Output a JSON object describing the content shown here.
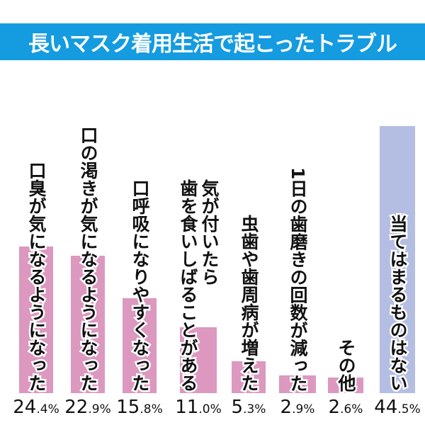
{
  "chart_data": {
    "type": "bar",
    "title": "長いマスク着用生活で起こったトラブル",
    "categories": [
      [
        "口臭が気になるようになった"
      ],
      [
        "口の渇きが気になるようになった"
      ],
      [
        "口呼吸になりやすくなった"
      ],
      [
        "気が付いたら",
        "歯を食いしばることがある"
      ],
      [
        "虫歯や歯周病が増えた"
      ],
      [
        "1日の歯磨きの回数が減った"
      ],
      [
        "その他"
      ],
      [
        "当てはまるものはない"
      ]
    ],
    "values": [
      24.4,
      22.9,
      15.8,
      11.0,
      5.3,
      2.9,
      2.6,
      44.5
    ],
    "value_labels": [
      "24.4%",
      "22.9%",
      "15.8%",
      "11.0%",
      "5.3%",
      "2.9%",
      "2.6%",
      "44.5%"
    ],
    "colors": [
      "#dc98be",
      "#dc98be",
      "#dc98be",
      "#dc98be",
      "#dc98be",
      "#dc98be",
      "#dc98be",
      "#b4bde2"
    ],
    "title_bg": "#149be0",
    "ylim": [
      0,
      44.5
    ],
    "grid": false
  }
}
